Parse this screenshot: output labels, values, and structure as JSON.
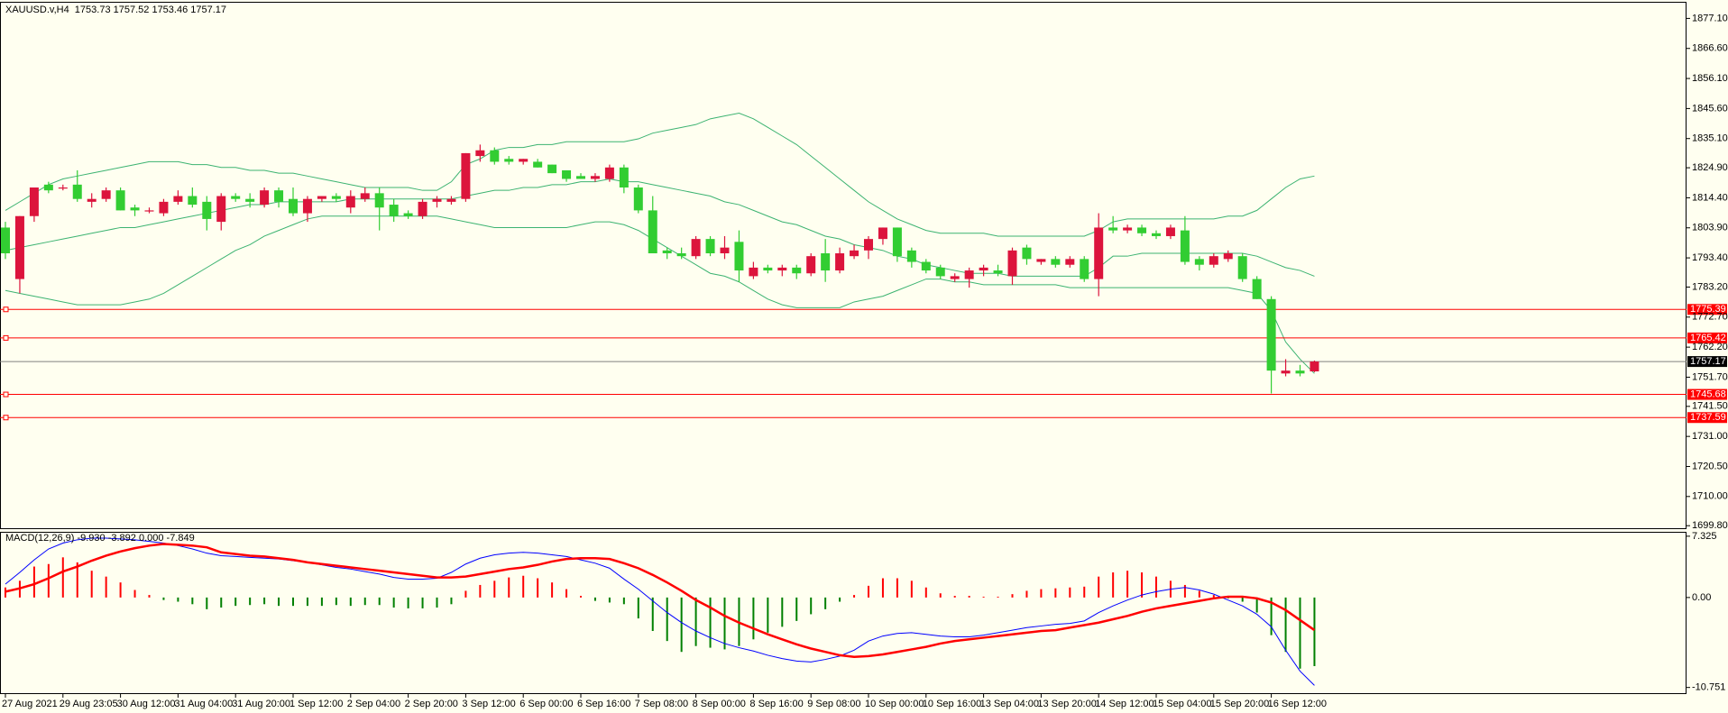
{
  "chart_data": [
    {
      "type": "candlestick",
      "title": "XAUUSD.v,H4  1753.73 1757.52 1753.46 1757.17",
      "categories": [
        "27 Aug 2021",
        null,
        null,
        null,
        "29 Aug 23:05",
        null,
        null,
        null,
        "30 Aug 12:00",
        null,
        null,
        null,
        "31 Aug 04:00",
        null,
        null,
        null,
        "31 Aug 20:00",
        null,
        null,
        null,
        "1 Sep 12:00",
        null,
        null,
        null,
        "2 Sep 04:00",
        null,
        null,
        null,
        "2 Sep 20:00",
        null,
        null,
        null,
        "3 Sep 12:00",
        null,
        null,
        null,
        "6 Sep 00:00",
        null,
        null,
        null,
        "6 Sep 16:00",
        null,
        null,
        null,
        "7 Sep 08:00",
        null,
        null,
        null,
        "8 Sep 00:00",
        null,
        null,
        null,
        "8 Sep 16:00",
        null,
        null,
        null,
        "9 Sep 08:00",
        null,
        null,
        null,
        "10 Sep 00:00",
        null,
        null,
        null,
        "10 Sep 16:00",
        null,
        null,
        null,
        "13 Sep 04:00",
        null,
        null,
        null,
        "13 Sep 20:00",
        null,
        null,
        null,
        "14 Sep 12:00",
        null,
        null,
        null,
        "15 Sep 04:00",
        null,
        null,
        null,
        "15 Sep 20:00",
        null,
        null,
        null,
        "16 Sep 12:00",
        null,
        null,
        null
      ],
      "open": [
        1804,
        1786,
        1808,
        1819,
        1818,
        1819,
        1813,
        1814,
        1817,
        1811,
        1810,
        1809,
        1813,
        1815,
        1813,
        1806,
        1815,
        1814,
        1812,
        1817,
        1814,
        1809,
        1814,
        1815,
        1811,
        1814,
        1816,
        1812,
        1809,
        1808,
        1813,
        1813,
        1814,
        1829,
        1831,
        1828,
        1827,
        1827,
        1826,
        1824,
        1822,
        1821,
        1821,
        1825,
        1818,
        1810,
        1796,
        1795,
        1794,
        1800,
        1795,
        1799,
        1787,
        1790,
        1789,
        1790,
        1788,
        1795,
        1789,
        1794,
        1796,
        1800,
        1804,
        1796,
        1792,
        1790,
        1786,
        1786,
        1789,
        1789,
        1787,
        1797,
        1792,
        1793,
        1791,
        1793,
        1786,
        1804,
        1803,
        1804,
        1802,
        1801,
        1803,
        1793,
        1791,
        1793,
        1794,
        1786,
        1779,
        1753,
        1754,
        1753.73
      ],
      "high": [
        1806,
        1808,
        1818,
        1820,
        1819,
        1824,
        1816,
        1818,
        1818,
        1812,
        1811,
        1814,
        1817,
        1818,
        1815,
        1816,
        1816,
        1816,
        1818,
        1818,
        1818,
        1815,
        1815,
        1816,
        1817,
        1818,
        1818,
        1814,
        1810,
        1814,
        1815,
        1815,
        1830,
        1833,
        1832,
        1829,
        1828,
        1828,
        1826,
        1824,
        1823,
        1823,
        1826,
        1826,
        1819,
        1815,
        1797,
        1797,
        1801,
        1801,
        1801,
        1803,
        1792,
        1791,
        1791,
        1791,
        1795,
        1800,
        1797,
        1798,
        1801,
        1804,
        1804,
        1797,
        1793,
        1791,
        1788,
        1790,
        1791,
        1791,
        1797,
        1798,
        1793,
        1794,
        1794,
        1794,
        1809,
        1808,
        1805,
        1805,
        1803,
        1805,
        1808,
        1794,
        1795,
        1796,
        1795,
        1787,
        1780,
        1758,
        1756,
        1757.52
      ],
      "low": [
        1793,
        1781,
        1806,
        1816,
        1817,
        1813,
        1811,
        1813,
        1810,
        1808,
        1809,
        1808,
        1812,
        1811,
        1803,
        1803,
        1813,
        1811,
        1811,
        1811,
        1808,
        1806,
        1813,
        1813,
        1809,
        1813,
        1803,
        1806,
        1807,
        1807,
        1811,
        1812,
        1813,
        1827,
        1826,
        1826,
        1826,
        1825,
        1823,
        1820,
        1821,
        1820,
        1820,
        1816,
        1809,
        1795,
        1793,
        1793,
        1793,
        1794,
        1793,
        1785,
        1786,
        1788,
        1787,
        1786,
        1787,
        1785,
        1788,
        1793,
        1793,
        1798,
        1792,
        1790,
        1788,
        1786,
        1785,
        1783,
        1787,
        1787,
        1784,
        1791,
        1791,
        1790,
        1790,
        1785,
        1780,
        1802,
        1802,
        1801,
        1800,
        1800,
        1791,
        1789,
        1790,
        1792,
        1785,
        1779,
        1746,
        1752,
        1752,
        1753.46
      ],
      "close": [
        1795,
        1808,
        1818,
        1817,
        1818,
        1814,
        1814,
        1817,
        1810,
        1810,
        1810,
        1813,
        1815,
        1812,
        1807,
        1815,
        1814,
        1813,
        1817,
        1813,
        1809,
        1814,
        1815,
        1814,
        1815,
        1816,
        1811,
        1808,
        1808,
        1813,
        1814,
        1814,
        1830,
        1831,
        1827,
        1827,
        1828,
        1825,
        1823,
        1821,
        1821,
        1822,
        1825,
        1818,
        1810,
        1795,
        1795,
        1794,
        1800,
        1795,
        1797,
        1789,
        1790,
        1789,
        1790,
        1788,
        1794,
        1789,
        1795,
        1796,
        1800,
        1804,
        1794,
        1792,
        1789,
        1787,
        1787,
        1789,
        1790,
        1788,
        1796,
        1793,
        1793,
        1791,
        1793,
        1786,
        1804,
        1803,
        1804,
        1802,
        1801,
        1804,
        1792,
        1791,
        1794,
        1795,
        1786,
        1779,
        1754,
        1754,
        1753,
        1757.17
      ],
      "up_color": "#dc143c",
      "down_color": "#32cd32",
      "overlays": [
        {
          "color": "#3cb371",
          "values": [
            1810,
            1813,
            1816,
            1819,
            1821,
            1822,
            1823,
            1824,
            1825,
            1826,
            1827,
            1827,
            1827,
            1826,
            1826,
            1825,
            1825,
            1824,
            1824,
            1823,
            1823,
            1822,
            1821,
            1820,
            1819,
            1818,
            1818,
            1818,
            1818,
            1817,
            1817,
            1820,
            1826,
            1828,
            1831,
            1832,
            1832,
            1833,
            1833,
            1834,
            1834,
            1834,
            1834,
            1834,
            1835,
            1837,
            1838,
            1839,
            1840,
            1842,
            1843,
            1844,
            1842,
            1839,
            1836,
            1833,
            1829,
            1825,
            1821,
            1817,
            1813,
            1810,
            1807,
            1805,
            1803,
            1802,
            1802,
            1802,
            1802,
            1801,
            1801,
            1801,
            1801,
            1801,
            1801,
            1801,
            1803,
            1806,
            1807,
            1807,
            1807,
            1807,
            1807,
            1807,
            1807,
            1808,
            1808,
            1810,
            1814,
            1818,
            1821,
            1822
          ]
        },
        {
          "color": "#3cb371",
          "values": [
            1796,
            1797,
            1798,
            1799,
            1800,
            1801,
            1802,
            1803,
            1804,
            1804,
            1805,
            1806,
            1807,
            1808,
            1809,
            1810,
            1811,
            1812,
            1812,
            1813,
            1813,
            1813,
            1813,
            1813,
            1814,
            1814,
            1814,
            1814,
            1814,
            1814,
            1814,
            1814,
            1815,
            1816,
            1817,
            1817,
            1818,
            1818,
            1819,
            1819,
            1820,
            1820,
            1821,
            1820,
            1820,
            1819,
            1818,
            1817,
            1816,
            1815,
            1813,
            1812,
            1810,
            1808,
            1806,
            1805,
            1803,
            1801,
            1800,
            1798,
            1797,
            1796,
            1794,
            1793,
            1791,
            1790,
            1789,
            1788,
            1788,
            1788,
            1787,
            1787,
            1787,
            1787,
            1787,
            1787,
            1790,
            1794,
            1794,
            1795,
            1795,
            1795,
            1795,
            1795,
            1795,
            1795,
            1795,
            1794,
            1792,
            1790,
            1789,
            1787
          ]
        },
        {
          "color": "#3cb371",
          "values": [
            1782,
            1781,
            1780,
            1779,
            1778,
            1777,
            1777,
            1777,
            1777,
            1778,
            1779,
            1781,
            1784,
            1787,
            1790,
            1793,
            1796,
            1798,
            1801,
            1803,
            1805,
            1807,
            1808,
            1808,
            1808,
            1808,
            1808,
            1808,
            1808,
            1808,
            1808,
            1807,
            1806,
            1805,
            1804,
            1804,
            1804,
            1804,
            1804,
            1804,
            1805,
            1806,
            1806,
            1805,
            1803,
            1800,
            1797,
            1794,
            1791,
            1788,
            1787,
            1785,
            1782,
            1779,
            1777,
            1776,
            1776,
            1776,
            1776,
            1778,
            1779,
            1780,
            1782,
            1784,
            1786,
            1786,
            1785,
            1785,
            1784,
            1784,
            1784,
            1784,
            1784,
            1784,
            1783,
            1783,
            1783,
            1783,
            1783,
            1783,
            1783,
            1783,
            1783,
            1783,
            1783,
            1783,
            1782,
            1781,
            1775,
            1764,
            1758,
            1753
          ]
        }
      ],
      "price_lines": [
        {
          "value": 1775.39,
          "color": "#ff0000"
        },
        {
          "value": 1765.42,
          "color": "#ff0000"
        },
        {
          "value": 1745.68,
          "color": "#ff0000"
        },
        {
          "value": 1737.59,
          "color": "#ff0000"
        }
      ],
      "current_price": 1757.17,
      "current_color": "#808080",
      "ylim": [
        1698.6,
        1882.9
      ],
      "yticks": [
        {
          "value": 1877.1,
          "label": "1877.10"
        },
        {
          "value": 1866.6,
          "label": "1866.60"
        },
        {
          "value": 1856.1,
          "label": "1856.10"
        },
        {
          "value": 1845.6,
          "label": "1845.60"
        },
        {
          "value": 1835.1,
          "label": "1835.10"
        },
        {
          "value": 1824.9,
          "label": "1824.90"
        },
        {
          "value": 1814.4,
          "label": "1814.40"
        },
        {
          "value": 1803.9,
          "label": "1803.90"
        },
        {
          "value": 1793.4,
          "label": "1793.40"
        },
        {
          "value": 1783.2,
          "label": "1783.20"
        },
        {
          "value": 1772.7,
          "label": "1772.70"
        },
        {
          "value": 1762.2,
          "label": "1762.20"
        },
        {
          "value": 1751.7,
          "label": "1751.70"
        },
        {
          "value": 1741.5,
          "label": "1741.50"
        },
        {
          "value": 1731,
          "label": "1731.00"
        },
        {
          "value": 1720.5,
          "label": "1720.50"
        },
        {
          "value": 1710,
          "label": "1710.00"
        },
        {
          "value": 1699.8,
          "label": "1699.80"
        }
      ]
    },
    {
      "type": "macd",
      "title": "MACD(12,26,9) -9.930 -3.892 0.000 -7.849",
      "histogram": {
        "up_color": "#ff0000",
        "down_color": "#008000",
        "values": [
          1.2,
          2.0,
          3.7,
          4.0,
          4.8,
          4.2,
          3.2,
          2.5,
          1.8,
          0.9,
          0.3,
          -0.3,
          -0.5,
          -0.8,
          -1.4,
          -1.2,
          -1.0,
          -0.9,
          -0.8,
          -1.0,
          -1.0,
          -1.0,
          -1.0,
          -0.9,
          -1.0,
          -0.9,
          -0.9,
          -1.2,
          -1.3,
          -1.3,
          -1.2,
          -0.8,
          0.8,
          1.5,
          2.0,
          2.4,
          2.6,
          2.3,
          1.8,
          1.0,
          0.2,
          -0.4,
          -0.6,
          -0.8,
          -2.5,
          -4.0,
          -5.2,
          -6.5,
          -5.8,
          -6.0,
          -6.2,
          -5.8,
          -5.0,
          -4.2,
          -3.5,
          -2.8,
          -2.0,
          -1.4,
          -0.5,
          0.3,
          1.4,
          2.3,
          2.3,
          2.0,
          1.2,
          0.5,
          0.2,
          0.2,
          0.1,
          0.1,
          0.4,
          0.8,
          1.0,
          1.1,
          1.2,
          1.3,
          2.5,
          3.0,
          3.2,
          3.0,
          2.5,
          2.0,
          1.5,
          0.8,
          0.3,
          -0.1,
          -0.5,
          -1.8,
          -4.5,
          -6.5,
          -8.5,
          -8.2
        ]
      },
      "series": [
        {
          "color": "#0000ff",
          "width": 1,
          "values": [
            1.6,
            3.0,
            4.5,
            5.8,
            6.5,
            6.9,
            7.1,
            7.1,
            7.0,
            6.9,
            6.7,
            6.5,
            6.2,
            5.8,
            5.3,
            5.0,
            4.9,
            4.8,
            4.7,
            4.6,
            4.4,
            4.2,
            3.9,
            3.6,
            3.4,
            3.1,
            2.8,
            2.4,
            2.2,
            2.2,
            2.3,
            3.0,
            4.0,
            4.7,
            5.1,
            5.3,
            5.4,
            5.3,
            5.1,
            4.9,
            4.5,
            4.1,
            3.5,
            2.2,
            1.0,
            -0.4,
            -1.8,
            -3.0,
            -4.0,
            -4.8,
            -5.5,
            -6.0,
            -6.4,
            -6.9,
            -7.3,
            -7.6,
            -7.7,
            -7.4,
            -7.0,
            -6.3,
            -5.2,
            -4.6,
            -4.3,
            -4.2,
            -4.4,
            -4.6,
            -4.7,
            -4.7,
            -4.5,
            -4.2,
            -3.9,
            -3.6,
            -3.4,
            -3.2,
            -3.1,
            -2.8,
            -1.8,
            -1.0,
            -0.3,
            0.3,
            0.7,
            1.0,
            1.2,
            0.9,
            0.4,
            -0.3,
            -1.0,
            -2.0,
            -3.5,
            -6.3,
            -8.8,
            -10.5
          ]
        },
        {
          "color": "#ff0000",
          "width": 2.5,
          "values": [
            0.7,
            1.1,
            1.6,
            2.3,
            3.1,
            3.7,
            4.4,
            5.0,
            5.5,
            5.9,
            6.2,
            6.4,
            6.3,
            6.2,
            6.0,
            5.4,
            5.2,
            5.0,
            4.9,
            4.7,
            4.5,
            4.2,
            4.0,
            3.8,
            3.6,
            3.4,
            3.2,
            3.0,
            2.8,
            2.6,
            2.4,
            2.4,
            2.5,
            2.8,
            3.1,
            3.4,
            3.6,
            3.9,
            4.3,
            4.6,
            4.7,
            4.7,
            4.6,
            4.1,
            3.5,
            2.7,
            1.8,
            0.8,
            -0.3,
            -1.2,
            -2.2,
            -3.0,
            -3.7,
            -4.4,
            -5.0,
            -5.6,
            -6.1,
            -6.5,
            -6.9,
            -7.1,
            -7.0,
            -6.8,
            -6.5,
            -6.2,
            -5.9,
            -5.5,
            -5.2,
            -5.0,
            -4.8,
            -4.6,
            -4.4,
            -4.2,
            -4.0,
            -3.9,
            -3.6,
            -3.3,
            -3.0,
            -2.6,
            -2.2,
            -1.7,
            -1.3,
            -1.0,
            -0.7,
            -0.4,
            -0.1,
            0.1,
            0.1,
            -0.1,
            -0.6,
            -1.5,
            -2.7,
            -3.9
          ]
        }
      ],
      "ylim": [
        -11.54,
        7.85
      ],
      "yticks": [
        7.325,
        {
          "value": 0,
          "label": "0.00"
        },
        -10.751
      ]
    }
  ]
}
